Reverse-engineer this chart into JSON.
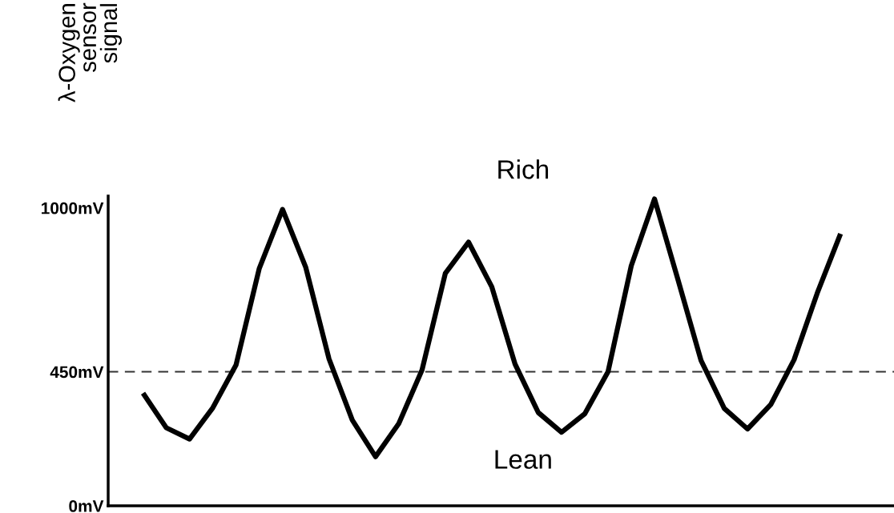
{
  "chart_data": {
    "type": "line",
    "ylabel": "λ-Oxygen\nsensor\nsignal",
    "categories": [
      null,
      null,
      null,
      null,
      null,
      null,
      null,
      null,
      null,
      null,
      null,
      null,
      null,
      null,
      null,
      null,
      null,
      null,
      null,
      null,
      null,
      null,
      null,
      null,
      null,
      null,
      null,
      null,
      null,
      null,
      null
    ],
    "series": [
      {
        "color": "#000000",
        "values": [
          378,
          262,
          224,
          329,
          473,
          797,
          995,
          800,
          493,
          288,
          165,
          276,
          456,
          780,
          885,
          735,
          476,
          313,
          247,
          309,
          450,
          806,
          1030,
          761,
          488,
          327,
          258,
          340,
          490,
          714,
          913
        ]
      }
    ],
    "ylim": [
      0,
      1040
    ],
    "yticks": [
      {
        "value": 0,
        "label": "0mV"
      },
      {
        "value": 450,
        "label": "450mV"
      },
      {
        "value": 1000,
        "label": "1000mV"
      }
    ],
    "tick_labels": "y",
    "grid": false,
    "legend": false,
    "line_style": "solid",
    "ref_lines": [
      {
        "axis": "y",
        "value": 450,
        "color": "#333333",
        "line_style": "dashed"
      }
    ],
    "annotations": [
      "Rich",
      "Lean"
    ]
  }
}
